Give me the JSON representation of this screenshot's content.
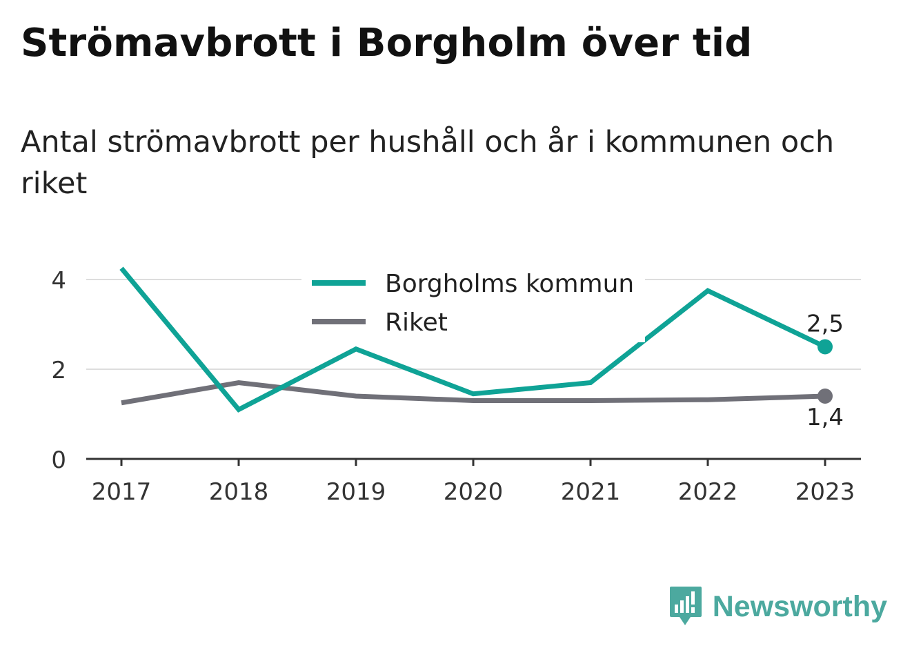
{
  "header": {
    "title": "Strömavbrott i Borgholm över tid",
    "subtitle": "Antal strömavbrott per hushåll och år i kommunen och riket"
  },
  "chart_data": {
    "type": "line",
    "title": "Strömavbrott i Borgholm över tid",
    "subtitle": "Antal strömavbrott per hushåll och år i kommunen och riket",
    "xlabel": "",
    "ylabel": "",
    "categories": [
      "2017",
      "2018",
      "2019",
      "2020",
      "2021",
      "2022",
      "2023"
    ],
    "ylim": [
      0,
      4
    ],
    "yticks": [
      "0",
      "2",
      "4"
    ],
    "grid": true,
    "legend_position": "top-center",
    "series": [
      {
        "name": "Borgholms kommun",
        "color": "#0fa396",
        "values": [
          4.25,
          1.1,
          2.45,
          1.45,
          1.7,
          3.75,
          2.5
        ],
        "end_label": "2,5"
      },
      {
        "name": "Riket",
        "color": "#707078",
        "values": [
          1.25,
          1.7,
          1.4,
          1.3,
          1.3,
          1.32,
          1.4
        ],
        "end_label": "1,4"
      }
    ]
  },
  "brand": {
    "name": "Newsworthy",
    "icon": "newsworthy-logo-icon",
    "color": "#4ca99f"
  }
}
